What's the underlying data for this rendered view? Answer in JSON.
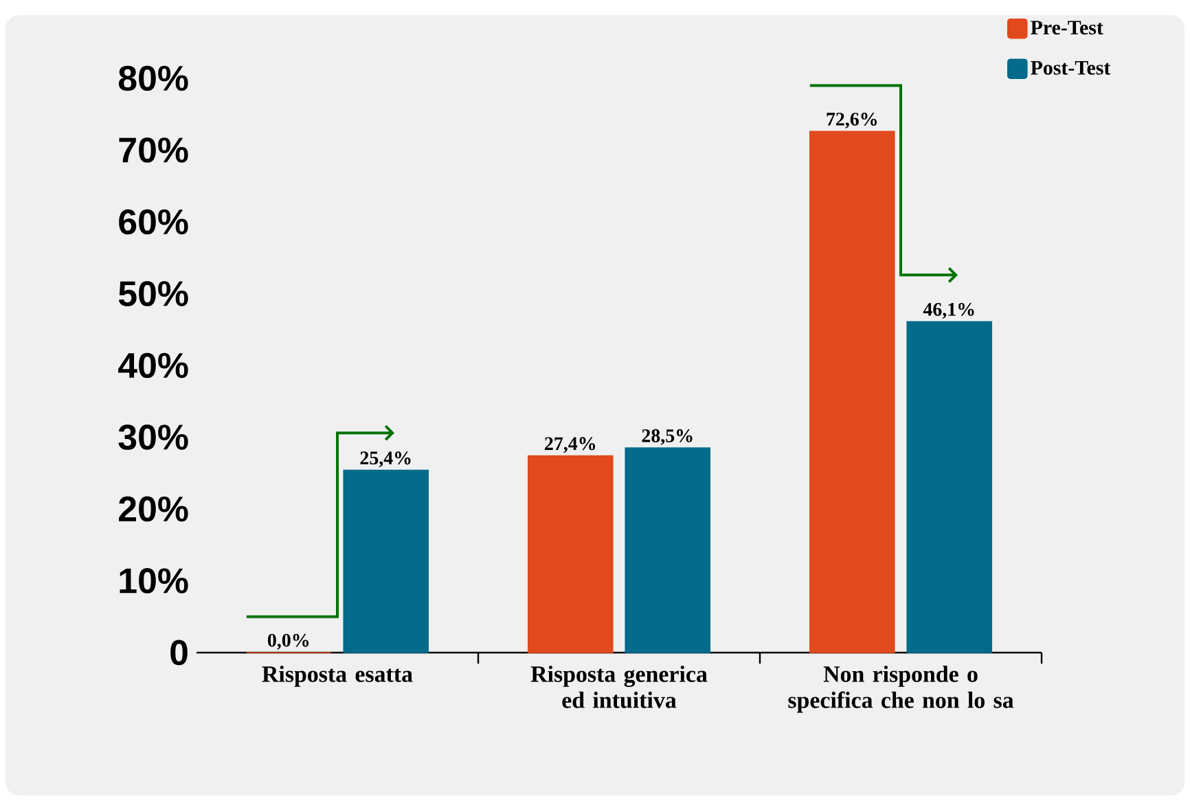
{
  "chart_data": {
    "type": "bar",
    "categories": [
      "Risposta esatta",
      "Risposta generica ed intuitiva",
      "Non risponde o specifica che non lo sa"
    ],
    "series": [
      {
        "name": "Pre-Test",
        "color": "#e2491c",
        "values": [
          0.0,
          27.4,
          72.6
        ],
        "value_labels": [
          "0,0%",
          "27,4%",
          "72,6%"
        ]
      },
      {
        "name": "Post-Test",
        "color": "#046b8b",
        "values": [
          25.4,
          28.5,
          46.1
        ],
        "value_labels": [
          "25,4%",
          "28,5%",
          "46,1%"
        ]
      }
    ],
    "ylim": [
      0,
      80
    ],
    "yticks": [
      0,
      {
        "value": 10,
        "label": "10%"
      },
      {
        "value": 20,
        "label": "20%"
      },
      {
        "value": 30,
        "label": "30%"
      },
      {
        "value": 40,
        "label": "40%"
      },
      {
        "value": 50,
        "label": "50%"
      },
      {
        "value": 60,
        "label": "60%"
      },
      {
        "value": 70,
        "label": "70%"
      },
      {
        "value": 80,
        "label": "80%"
      }
    ],
    "legend": "top right",
    "grid": false
  }
}
